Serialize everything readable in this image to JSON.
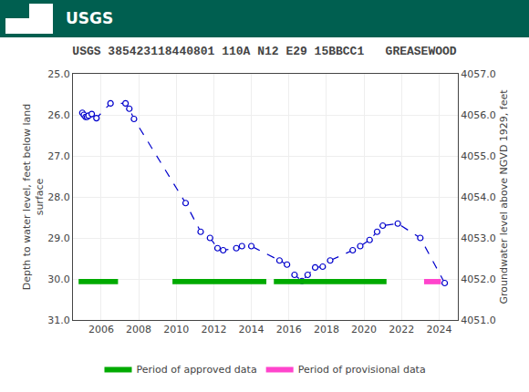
{
  "chart_data": {
    "type": "line",
    "title": "USGS 385423118440801 110A N12 E29 15BBCC1   GREASEWOOD",
    "header": {
      "text": "USGS",
      "color": "#005f50"
    },
    "ylabel": "Depth to water level, feet below land\nsurface",
    "y2label": "Groundwater level above NGVD 1929, feet",
    "xlim": [
      2004.5,
      2025.0
    ],
    "xticks": [
      2006,
      2008,
      2010,
      2012,
      2014,
      2016,
      2018,
      2020,
      2022,
      2024
    ],
    "ylim": [
      31.0,
      25.0
    ],
    "yticks": [
      {
        "value": 25.0,
        "label": "25.0"
      },
      {
        "value": 26.0,
        "label": "26.0"
      },
      {
        "value": 27.0,
        "label": "27.0"
      },
      {
        "value": 28.0,
        "label": "28.0"
      },
      {
        "value": 29.0,
        "label": "29.0"
      },
      {
        "value": 30.0,
        "label": "30.0"
      },
      {
        "value": 31.0,
        "label": "31.0"
      }
    ],
    "y2lim": [
      4051.0,
      4057.0
    ],
    "y2ticks": [
      {
        "value": 4057.0,
        "label": "4057.0"
      },
      {
        "value": 4056.0,
        "label": "4056.0"
      },
      {
        "value": 4055.0,
        "label": "4055.0"
      },
      {
        "value": 4054.0,
        "label": "4054.0"
      },
      {
        "value": 4053.0,
        "label": "4053.0"
      },
      {
        "value": 4052.0,
        "label": "4052.0"
      },
      {
        "value": 4051.0,
        "label": "4051.0"
      }
    ],
    "grid": true,
    "legend": "bottom",
    "series": [
      {
        "type": "line",
        "color": "#0000cc",
        "line_style": "dashed",
        "marker": "circle-open",
        "x": [
          2005.0,
          2005.08,
          2005.17,
          2005.25,
          2005.33,
          2005.5,
          2005.75,
          2006.5,
          2007.3,
          2007.5,
          2007.75,
          2010.5,
          2011.3,
          2011.8,
          2012.2,
          2012.5,
          2013.2,
          2013.5,
          2014.0,
          2015.5,
          2015.9,
          2016.3,
          2016.7,
          2017.0,
          2017.4,
          2017.8,
          2018.2,
          2019.4,
          2019.8,
          2020.3,
          2020.7,
          2021.0,
          2021.8,
          2023.0,
          2024.3
        ],
        "values": [
          25.95,
          26.0,
          26.05,
          26.05,
          26.02,
          25.98,
          26.08,
          25.72,
          25.72,
          25.85,
          26.1,
          28.15,
          28.85,
          29.0,
          29.25,
          29.3,
          29.25,
          29.2,
          29.2,
          29.55,
          29.65,
          29.9,
          30.05,
          29.9,
          29.72,
          29.7,
          29.55,
          29.3,
          29.2,
          29.05,
          28.85,
          28.7,
          28.65,
          29.0,
          30.1
        ]
      },
      {
        "type": "period",
        "name": "Period of approved data",
        "color": "#00aa00",
        "base": 30.0,
        "height": 0.13,
        "periods": [
          {
            "start": 2004.8,
            "end": 2006.9
          },
          {
            "start": 2009.8,
            "end": 2014.8
          },
          {
            "start": 2015.2,
            "end": 2021.2
          }
        ]
      },
      {
        "type": "period",
        "name": "Period of provisional data",
        "color": "#ff44cc",
        "base": 30.0,
        "height": 0.13,
        "periods": [
          {
            "start": 2023.2,
            "end": 2024.1
          }
        ]
      }
    ]
  }
}
